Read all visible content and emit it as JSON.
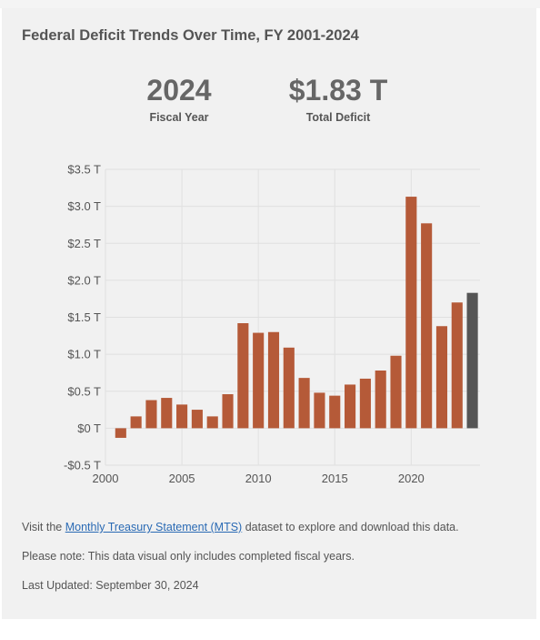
{
  "header": {
    "title": "Federal Deficit Trends Over Time, FY 2001-2024"
  },
  "stats": {
    "year_value": "2024",
    "year_label": "Fiscal Year",
    "deficit_value": "$1.83 T",
    "deficit_label": "Total Deficit"
  },
  "colors": {
    "bar": "#b55a38",
    "highlight": "#555555",
    "grid": "#e0e0e0",
    "link": "#2a6ab4"
  },
  "chart_data": {
    "type": "bar",
    "x": [
      2001,
      2002,
      2003,
      2004,
      2005,
      2006,
      2007,
      2008,
      2009,
      2010,
      2011,
      2012,
      2013,
      2014,
      2015,
      2016,
      2017,
      2018,
      2019,
      2020,
      2021,
      2022,
      2023,
      2024
    ],
    "values": [
      -0.13,
      0.16,
      0.38,
      0.41,
      0.32,
      0.25,
      0.16,
      0.46,
      1.42,
      1.29,
      1.3,
      1.09,
      0.68,
      0.48,
      0.44,
      0.59,
      0.67,
      0.78,
      0.98,
      3.13,
      2.77,
      1.38,
      1.7,
      1.83
    ],
    "highlight_x": 2024,
    "ylim": [
      -0.5,
      3.5
    ],
    "xlim": [
      2000,
      2024.5
    ],
    "y_ticks": [
      -0.5,
      0,
      0.5,
      1.0,
      1.5,
      2.0,
      2.5,
      3.0,
      3.5
    ],
    "y_tick_labels": [
      "-$0.5 T",
      "$0 T",
      "$0.5 T",
      "$1.0 T",
      "$1.5 T",
      "$2.0 T",
      "$2.5 T",
      "$3.0 T",
      "$3.5 T"
    ],
    "x_ticks": [
      2000,
      2005,
      2010,
      2015,
      2020
    ],
    "x_tick_labels": [
      "2000",
      "2005",
      "2010",
      "2015",
      "2020"
    ],
    "grid": true,
    "legend": "none"
  },
  "footer": {
    "visit_prefix": "Visit the ",
    "link_text": "Monthly Treasury Statement (MTS)",
    "visit_suffix": " dataset to explore and download this data.",
    "note": "Please note: This data visual only includes completed fiscal years.",
    "updated": "Last Updated: September 30, 2024"
  }
}
